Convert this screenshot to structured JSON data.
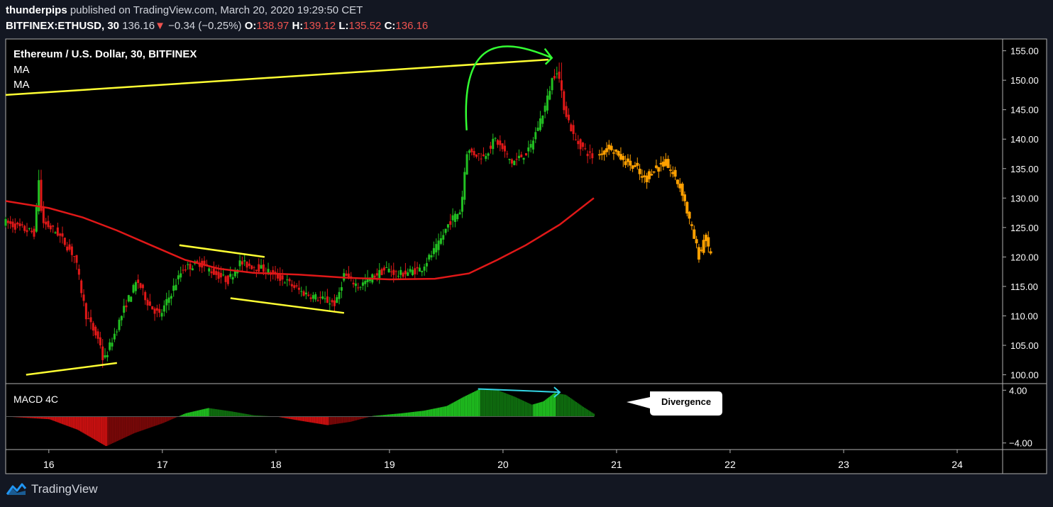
{
  "header": {
    "author": "thunderpips",
    "published_text": "published on TradingView.com, March 20, 2020 19:29:50 CET",
    "symbol": "BITFINEX:ETHUSD, 30",
    "last": "136.16",
    "change": "−0.34 (−0.25%)",
    "open_label": "O:",
    "open": "138.97",
    "high_label": "H:",
    "high": "139.12",
    "low_label": "L:",
    "low": "135.52",
    "close_label": "C:",
    "close": "136.16",
    "down_arrow": "▼"
  },
  "legend": {
    "title": "Ethereum / U.S. Dollar, 30, BITFINEX",
    "ma1": "MA",
    "ma2": "MA"
  },
  "macd": {
    "label": "MACD 4C",
    "divergence_label": "Divergence",
    "ticks": [
      "4.00",
      "−4.00"
    ]
  },
  "footer": {
    "brand": "TradingView"
  },
  "colors": {
    "background": "#000000",
    "up": "#22c022",
    "down": "#e01818",
    "ma": "#e01818",
    "projection": "#ffa000",
    "trendline": "#ffff33",
    "annotation_arrow": "#33ff33",
    "divergence": "#33d6e6"
  },
  "chart_data": {
    "type": "candlestick",
    "title": "Ethereum / U.S. Dollar, 30, BITFINEX",
    "x_ticks": [
      "16",
      "17",
      "18",
      "19",
      "20",
      "21",
      "22",
      "23",
      "24"
    ],
    "y_ticks": [
      "155.00",
      "150.00",
      "145.00",
      "140.00",
      "135.00",
      "130.00",
      "125.00",
      "120.00",
      "115.00",
      "110.00",
      "105.00",
      "100.00"
    ],
    "ylim": [
      98.5,
      157
    ],
    "xlim": [
      15.62,
      24.4
    ],
    "price_path": [
      [
        15.62,
        126
      ],
      [
        15.9,
        124
      ],
      [
        15.93,
        134
      ],
      [
        15.96,
        126
      ],
      [
        16.1,
        124
      ],
      [
        16.25,
        120
      ],
      [
        16.35,
        110
      ],
      [
        16.48,
        105
      ],
      [
        16.5,
        102
      ],
      [
        16.6,
        107
      ],
      [
        16.7,
        112
      ],
      [
        16.8,
        116
      ],
      [
        16.9,
        112
      ],
      [
        17.0,
        110
      ],
      [
        17.1,
        114
      ],
      [
        17.2,
        118
      ],
      [
        17.35,
        119
      ],
      [
        17.5,
        117
      ],
      [
        17.6,
        116
      ],
      [
        17.7,
        119
      ],
      [
        17.9,
        118
      ],
      [
        18.1,
        116
      ],
      [
        18.25,
        114
      ],
      [
        18.4,
        113
      ],
      [
        18.55,
        112
      ],
      [
        18.62,
        117
      ],
      [
        18.75,
        115
      ],
      [
        18.9,
        117
      ],
      [
        19.0,
        118
      ],
      [
        19.1,
        117
      ],
      [
        19.3,
        118
      ],
      [
        19.45,
        122
      ],
      [
        19.55,
        126
      ],
      [
        19.65,
        128
      ],
      [
        19.7,
        138
      ],
      [
        19.85,
        137
      ],
      [
        19.95,
        140
      ],
      [
        20.1,
        136
      ],
      [
        20.25,
        138
      ],
      [
        20.4,
        146
      ],
      [
        20.45,
        150
      ],
      [
        20.5,
        152
      ],
      [
        20.55,
        146
      ],
      [
        20.65,
        140
      ],
      [
        20.75,
        138
      ],
      [
        20.8,
        137
      ]
    ],
    "projection_path": [
      [
        20.85,
        137
      ],
      [
        20.95,
        139
      ],
      [
        21.05,
        137
      ],
      [
        21.2,
        135
      ],
      [
        21.25,
        133
      ],
      [
        21.35,
        135
      ],
      [
        21.45,
        136
      ],
      [
        21.55,
        133
      ],
      [
        21.6,
        131
      ],
      [
        21.65,
        127
      ],
      [
        21.72,
        122
      ],
      [
        21.75,
        120
      ],
      [
        21.8,
        124
      ],
      [
        21.83,
        121
      ]
    ],
    "ma_path": [
      [
        15.62,
        129.5
      ],
      [
        16.0,
        128.3
      ],
      [
        16.3,
        126.7
      ],
      [
        16.6,
        124.5
      ],
      [
        16.9,
        122.0
      ],
      [
        17.2,
        119.5
      ],
      [
        17.5,
        118.0
      ],
      [
        17.8,
        117.3
      ],
      [
        18.2,
        117.0
      ],
      [
        18.6,
        116.5
      ],
      [
        19.0,
        116.2
      ],
      [
        19.4,
        116.3
      ],
      [
        19.7,
        117.2
      ],
      [
        19.95,
        119.5
      ],
      [
        20.2,
        122.0
      ],
      [
        20.5,
        125.5
      ],
      [
        20.8,
        130.0
      ]
    ],
    "trendlines": [
      [
        [
          15.62,
          147.5
        ],
        [
          20.4,
          153.5
        ]
      ],
      [
        [
          15.8,
          100.0
        ],
        [
          16.6,
          102.0
        ]
      ],
      [
        [
          17.15,
          122.0
        ],
        [
          17.9,
          120.0
        ]
      ],
      [
        [
          17.6,
          113.0
        ],
        [
          18.6,
          110.5
        ]
      ]
    ],
    "annotation_arc": {
      "from": [
        19.68,
        141.5
      ],
      "to": [
        20.43,
        153.8
      ]
    },
    "macd_histogram": [
      [
        15.62,
        0.0
      ],
      [
        16.0,
        -0.4
      ],
      [
        16.25,
        -2.0
      ],
      [
        16.5,
        -4.5
      ],
      [
        16.75,
        -2.5
      ],
      [
        17.0,
        -1.0
      ],
      [
        17.2,
        0.5
      ],
      [
        17.4,
        1.3
      ],
      [
        17.6,
        0.8
      ],
      [
        17.8,
        0.2
      ],
      [
        18.0,
        0.0
      ],
      [
        18.2,
        -0.6
      ],
      [
        18.45,
        -1.3
      ],
      [
        18.65,
        -0.8
      ],
      [
        18.85,
        0.1
      ],
      [
        19.1,
        0.5
      ],
      [
        19.3,
        0.9
      ],
      [
        19.5,
        1.6
      ],
      [
        19.65,
        3.0
      ],
      [
        19.78,
        4.1
      ],
      [
        19.95,
        4.0
      ],
      [
        20.1,
        3.0
      ],
      [
        20.25,
        1.8
      ],
      [
        20.35,
        2.3
      ],
      [
        20.45,
        3.6
      ],
      [
        20.55,
        3.3
      ],
      [
        20.7,
        1.5
      ],
      [
        20.8,
        0.4
      ]
    ],
    "macd_ylim": [
      -5,
      5
    ],
    "divergence_line": [
      [
        19.78,
        4.2
      ],
      [
        20.5,
        3.7
      ]
    ]
  }
}
